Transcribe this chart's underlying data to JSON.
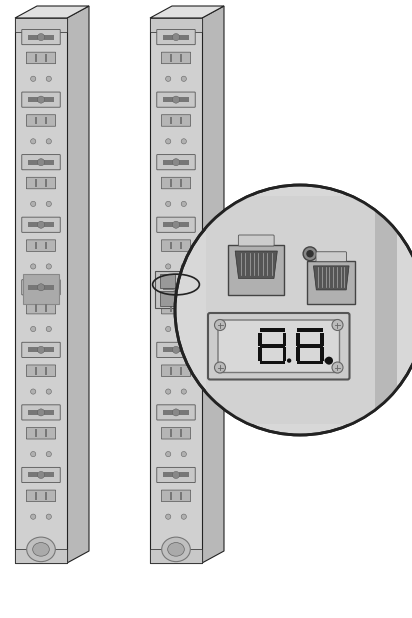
{
  "bg_color": "#ffffff",
  "pdu_face": "#d0d0d0",
  "pdu_side_right": "#b8b8b8",
  "pdu_side_narrow": "#c8c8c8",
  "pdu_top": "#e0e0e0",
  "outlet_face": "#c0c0c0",
  "outlet_dark": "#888888",
  "outlet_border": "#666666",
  "line_color": "#222222",
  "circle_bg": "#d8d8d8",
  "port_dark": "#555555",
  "port_body": "#b0b0b0",
  "display_bg": "#d0d0d0",
  "display_screen": "#c8c8c8",
  "seg_color": "#111111",
  "screw_color": "#999999"
}
